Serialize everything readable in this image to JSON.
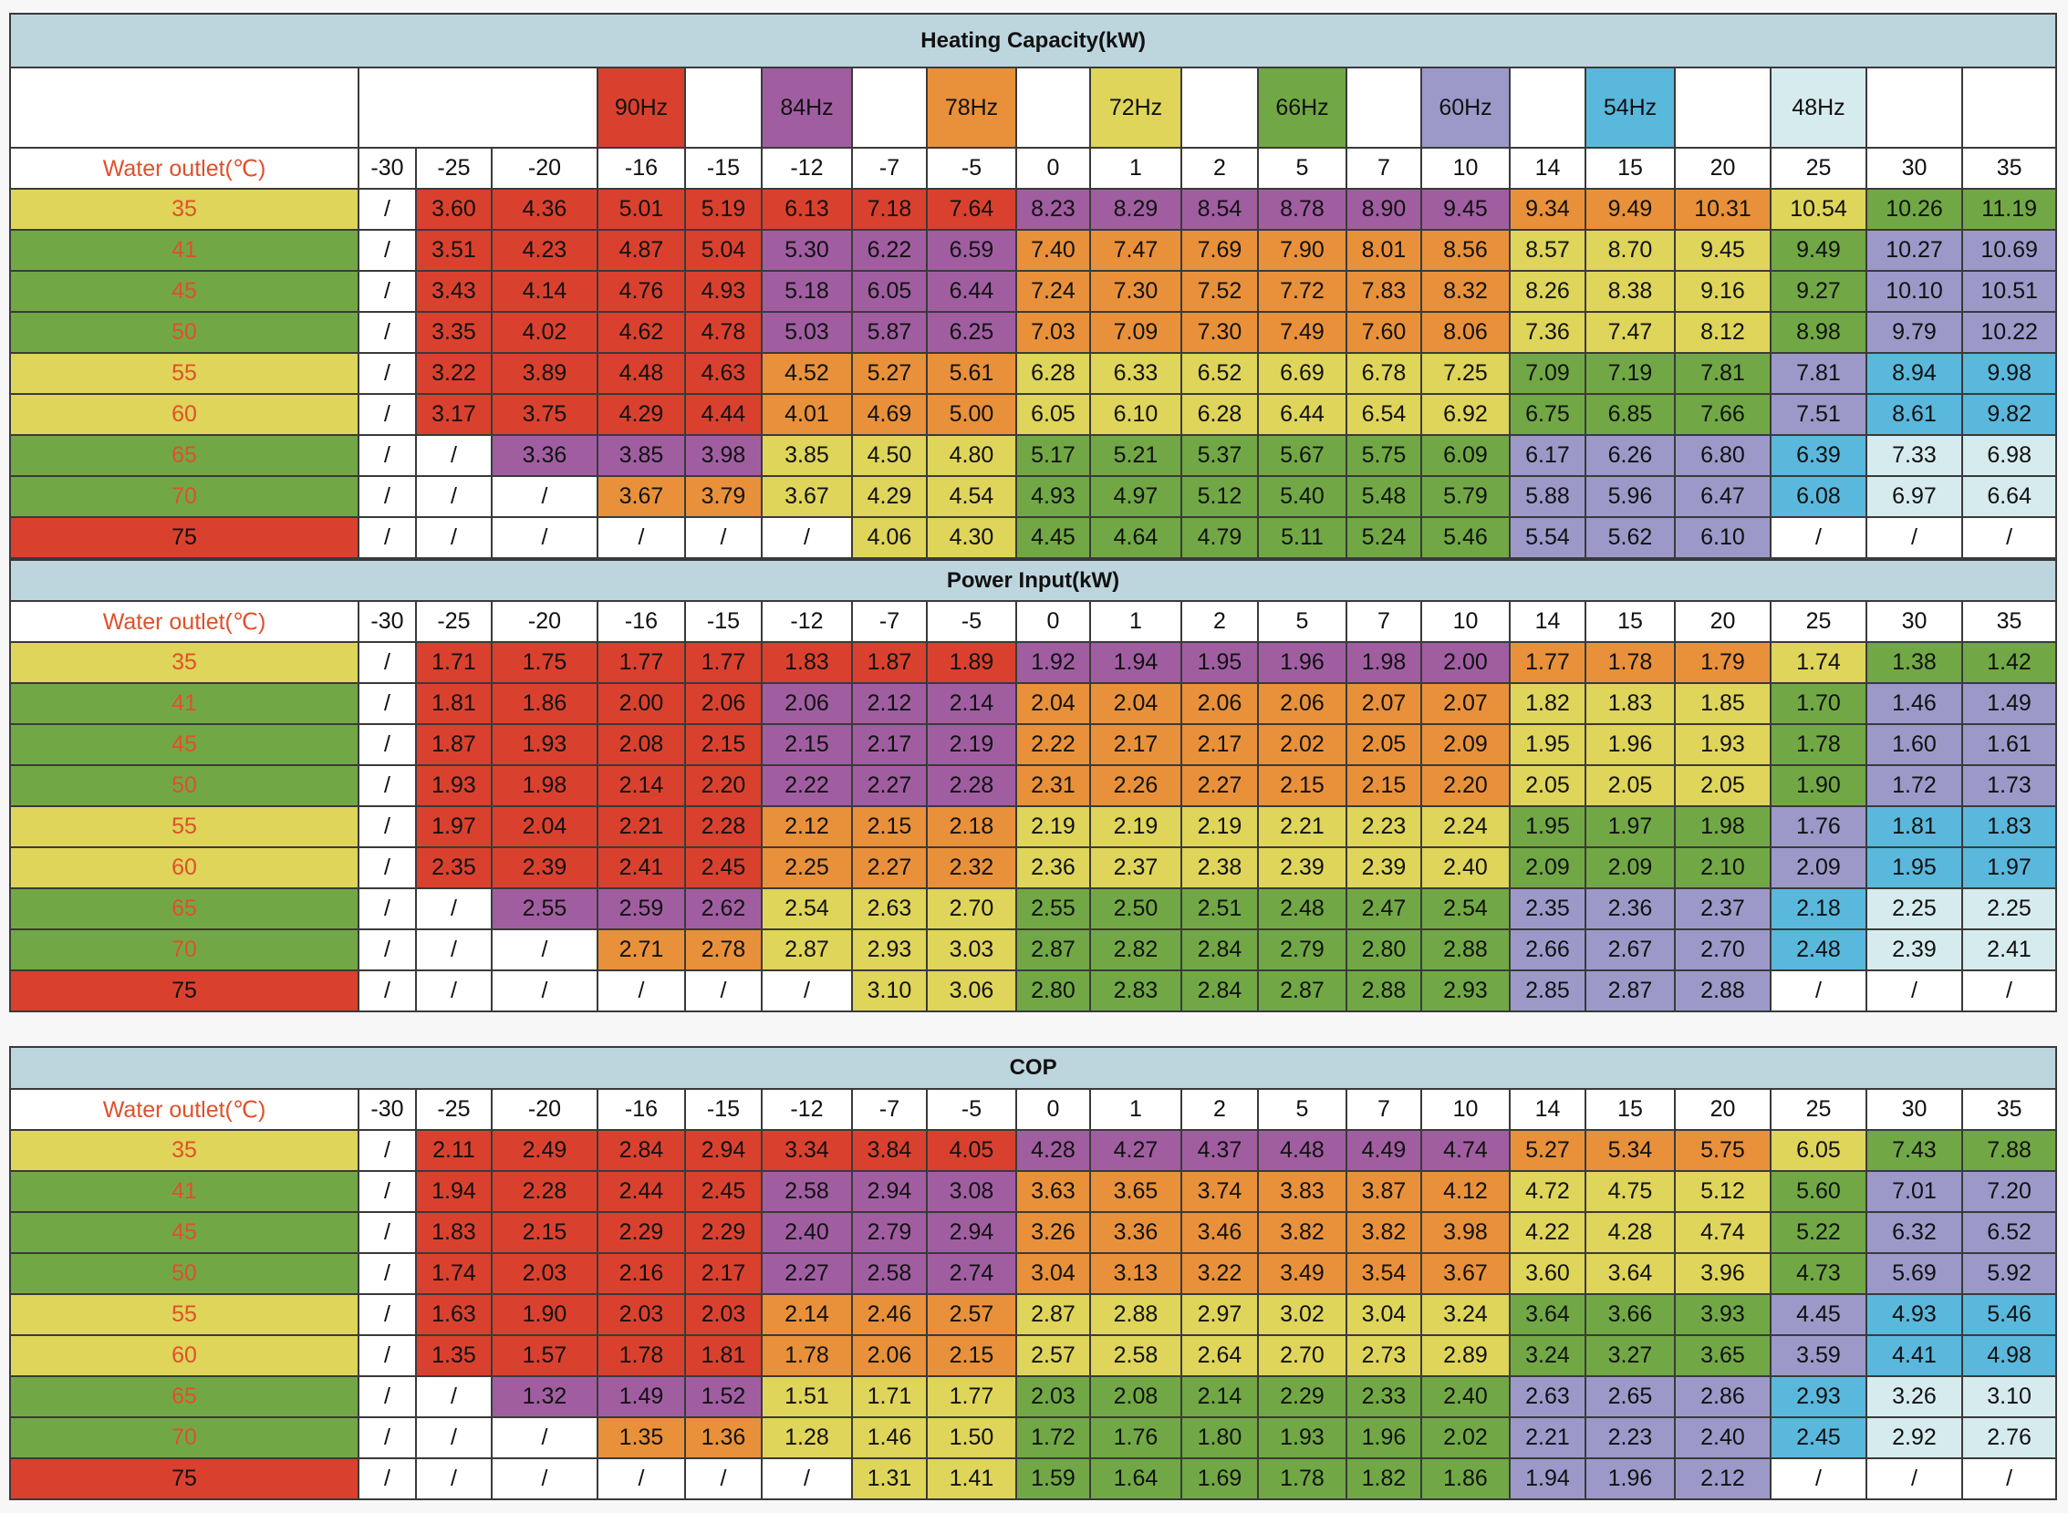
{
  "palette": {
    "R": "#d9412e",
    "P": "#a05ea1",
    "O": "#e8913a",
    "Y": "#ded55a",
    "G": "#71a845",
    "L": "#9c99c9",
    "B": "#5ab8dc",
    "C": "#d6ebee",
    "W": "#ffffff"
  },
  "outlet_header": "Water outlet(℃)",
  "ambient_temps": [
    "-30",
    "-25",
    "-20",
    "-16",
    "-15",
    "-12",
    "-7",
    "-5",
    "0",
    "1",
    "2",
    "5",
    "7",
    "10",
    "14",
    "15",
    "20",
    "25",
    "30",
    "35"
  ],
  "frequencies": [
    {
      "col": 3,
      "label": "90Hz",
      "color": "R"
    },
    {
      "col": 5,
      "label": "84Hz",
      "color": "P"
    },
    {
      "col": 7,
      "label": "78Hz",
      "color": "O"
    },
    {
      "col": 9,
      "label": "72Hz",
      "color": "Y"
    },
    {
      "col": 11,
      "label": "66Hz",
      "color": "G"
    },
    {
      "col": 13,
      "label": "60Hz",
      "color": "L"
    },
    {
      "col": 15,
      "label": "54Hz",
      "color": "B"
    },
    {
      "col": 17,
      "label": "48Hz",
      "color": "C"
    }
  ],
  "outlets": [
    {
      "label": "35",
      "color": "Y",
      "cells": "WRRRRRRRPPPPPPOOOYGG"
    },
    {
      "label": "41",
      "color": "G",
      "cells": "WRRRRPPPOOOOOOYYYGLL"
    },
    {
      "label": "45",
      "color": "G",
      "cells": "WRRRRPPPOOOOOOYYYGLL"
    },
    {
      "label": "50",
      "color": "G",
      "cells": "WRRRRPPPOOOOOOYYYGLL"
    },
    {
      "label": "55",
      "color": "Y",
      "cells": "WRRRROOOYYYYYYGGGLBB"
    },
    {
      "label": "60",
      "color": "Y",
      "cells": "WRRRROOOYYYYYYGGGLBB"
    },
    {
      "label": "65",
      "color": "G",
      "cells": "WWPPPYYYGGGGGGLLLBCC"
    },
    {
      "label": "70",
      "color": "G",
      "cells": "WWWOOYYYGGGGGGLLLBCC"
    },
    {
      "label": "75",
      "color": "R",
      "cells": "WWWWWWYYGGGGGGLLLWWW"
    }
  ],
  "sections": [
    {
      "title": "Heating Capacity(kW)",
      "rows": [
        [
          "/",
          "3.60",
          "4.36",
          "5.01",
          "5.19",
          "6.13",
          "7.18",
          "7.64",
          "8.23",
          "8.29",
          "8.54",
          "8.78",
          "8.90",
          "9.45",
          "9.34",
          "9.49",
          "10.31",
          "10.54",
          "10.26",
          "11.19"
        ],
        [
          "/",
          "3.51",
          "4.23",
          "4.87",
          "5.04",
          "5.30",
          "6.22",
          "6.59",
          "7.40",
          "7.47",
          "7.69",
          "7.90",
          "8.01",
          "8.56",
          "8.57",
          "8.70",
          "9.45",
          "9.49",
          "10.27",
          "10.69"
        ],
        [
          "/",
          "3.43",
          "4.14",
          "4.76",
          "4.93",
          "5.18",
          "6.05",
          "6.44",
          "7.24",
          "7.30",
          "7.52",
          "7.72",
          "7.83",
          "8.32",
          "8.26",
          "8.38",
          "9.16",
          "9.27",
          "10.10",
          "10.51"
        ],
        [
          "/",
          "3.35",
          "4.02",
          "4.62",
          "4.78",
          "5.03",
          "5.87",
          "6.25",
          "7.03",
          "7.09",
          "7.30",
          "7.49",
          "7.60",
          "8.06",
          "7.36",
          "7.47",
          "8.12",
          "8.98",
          "9.79",
          "10.22"
        ],
        [
          "/",
          "3.22",
          "3.89",
          "4.48",
          "4.63",
          "4.52",
          "5.27",
          "5.61",
          "6.28",
          "6.33",
          "6.52",
          "6.69",
          "6.78",
          "7.25",
          "7.09",
          "7.19",
          "7.81",
          "7.81",
          "8.94",
          "9.98"
        ],
        [
          "/",
          "3.17",
          "3.75",
          "4.29",
          "4.44",
          "4.01",
          "4.69",
          "5.00",
          "6.05",
          "6.10",
          "6.28",
          "6.44",
          "6.54",
          "6.92",
          "6.75",
          "6.85",
          "7.66",
          "7.51",
          "8.61",
          "9.82"
        ],
        [
          "/",
          "/",
          "3.36",
          "3.85",
          "3.98",
          "3.85",
          "4.50",
          "4.80",
          "5.17",
          "5.21",
          "5.37",
          "5.67",
          "5.75",
          "6.09",
          "6.17",
          "6.26",
          "6.80",
          "6.39",
          "7.33",
          "6.98"
        ],
        [
          "/",
          "/",
          "/",
          "3.67",
          "3.79",
          "3.67",
          "4.29",
          "4.54",
          "4.93",
          "4.97",
          "5.12",
          "5.40",
          "5.48",
          "5.79",
          "5.88",
          "5.96",
          "6.47",
          "6.08",
          "6.97",
          "6.64"
        ],
        [
          "/",
          "/",
          "/",
          "/",
          "/",
          "/",
          "4.06",
          "4.30",
          "4.45",
          "4.64",
          "4.79",
          "5.11",
          "5.24",
          "5.46",
          "5.54",
          "5.62",
          "6.10",
          "/",
          "/",
          "/"
        ]
      ]
    },
    {
      "title": "Power Input(kW)",
      "rows": [
        [
          "/",
          "1.71",
          "1.75",
          "1.77",
          "1.77",
          "1.83",
          "1.87",
          "1.89",
          "1.92",
          "1.94",
          "1.95",
          "1.96",
          "1.98",
          "2.00",
          "1.77",
          "1.78",
          "1.79",
          "1.74",
          "1.38",
          "1.42"
        ],
        [
          "/",
          "1.81",
          "1.86",
          "2.00",
          "2.06",
          "2.06",
          "2.12",
          "2.14",
          "2.04",
          "2.04",
          "2.06",
          "2.06",
          "2.07",
          "2.07",
          "1.82",
          "1.83",
          "1.85",
          "1.70",
          "1.46",
          "1.49"
        ],
        [
          "/",
          "1.87",
          "1.93",
          "2.08",
          "2.15",
          "2.15",
          "2.17",
          "2.19",
          "2.22",
          "2.17",
          "2.17",
          "2.02",
          "2.05",
          "2.09",
          "1.95",
          "1.96",
          "1.93",
          "1.78",
          "1.60",
          "1.61"
        ],
        [
          "/",
          "1.93",
          "1.98",
          "2.14",
          "2.20",
          "2.22",
          "2.27",
          "2.28",
          "2.31",
          "2.26",
          "2.27",
          "2.15",
          "2.15",
          "2.20",
          "2.05",
          "2.05",
          "2.05",
          "1.90",
          "1.72",
          "1.73"
        ],
        [
          "/",
          "1.97",
          "2.04",
          "2.21",
          "2.28",
          "2.12",
          "2.15",
          "2.18",
          "2.19",
          "2.19",
          "2.19",
          "2.21",
          "2.23",
          "2.24",
          "1.95",
          "1.97",
          "1.98",
          "1.76",
          "1.81",
          "1.83"
        ],
        [
          "/",
          "2.35",
          "2.39",
          "2.41",
          "2.45",
          "2.25",
          "2.27",
          "2.32",
          "2.36",
          "2.37",
          "2.38",
          "2.39",
          "2.39",
          "2.40",
          "2.09",
          "2.09",
          "2.10",
          "2.09",
          "1.95",
          "1.97"
        ],
        [
          "/",
          "/",
          "2.55",
          "2.59",
          "2.62",
          "2.54",
          "2.63",
          "2.70",
          "2.55",
          "2.50",
          "2.51",
          "2.48",
          "2.47",
          "2.54",
          "2.35",
          "2.36",
          "2.37",
          "2.18",
          "2.25",
          "2.25"
        ],
        [
          "/",
          "/",
          "/",
          "2.71",
          "2.78",
          "2.87",
          "2.93",
          "3.03",
          "2.87",
          "2.82",
          "2.84",
          "2.79",
          "2.80",
          "2.88",
          "2.66",
          "2.67",
          "2.70",
          "2.48",
          "2.39",
          "2.41"
        ],
        [
          "/",
          "/",
          "/",
          "/",
          "/",
          "/",
          "3.10",
          "3.06",
          "2.80",
          "2.83",
          "2.84",
          "2.87",
          "2.88",
          "2.93",
          "2.85",
          "2.87",
          "2.88",
          "/",
          "/",
          "/"
        ]
      ]
    },
    {
      "title": "COP",
      "rows": [
        [
          "/",
          "2.11",
          "2.49",
          "2.84",
          "2.94",
          "3.34",
          "3.84",
          "4.05",
          "4.28",
          "4.27",
          "4.37",
          "4.48",
          "4.49",
          "4.74",
          "5.27",
          "5.34",
          "5.75",
          "6.05",
          "7.43",
          "7.88"
        ],
        [
          "/",
          "1.94",
          "2.28",
          "2.44",
          "2.45",
          "2.58",
          "2.94",
          "3.08",
          "3.63",
          "3.65",
          "3.74",
          "3.83",
          "3.87",
          "4.12",
          "4.72",
          "4.75",
          "5.12",
          "5.60",
          "7.01",
          "7.20"
        ],
        [
          "/",
          "1.83",
          "2.15",
          "2.29",
          "2.29",
          "2.40",
          "2.79",
          "2.94",
          "3.26",
          "3.36",
          "3.46",
          "3.82",
          "3.82",
          "3.98",
          "4.22",
          "4.28",
          "4.74",
          "5.22",
          "6.32",
          "6.52"
        ],
        [
          "/",
          "1.74",
          "2.03",
          "2.16",
          "2.17",
          "2.27",
          "2.58",
          "2.74",
          "3.04",
          "3.13",
          "3.22",
          "3.49",
          "3.54",
          "3.67",
          "3.60",
          "3.64",
          "3.96",
          "4.73",
          "5.69",
          "5.92"
        ],
        [
          "/",
          "1.63",
          "1.90",
          "2.03",
          "2.03",
          "2.14",
          "2.46",
          "2.57",
          "2.87",
          "2.88",
          "2.97",
          "3.02",
          "3.04",
          "3.24",
          "3.64",
          "3.66",
          "3.93",
          "4.45",
          "4.93",
          "5.46"
        ],
        [
          "/",
          "1.35",
          "1.57",
          "1.78",
          "1.81",
          "1.78",
          "2.06",
          "2.15",
          "2.57",
          "2.58",
          "2.64",
          "2.70",
          "2.73",
          "2.89",
          "3.24",
          "3.27",
          "3.65",
          "3.59",
          "4.41",
          "4.98"
        ],
        [
          "/",
          "/",
          "1.32",
          "1.49",
          "1.52",
          "1.51",
          "1.71",
          "1.77",
          "2.03",
          "2.08",
          "2.14",
          "2.29",
          "2.33",
          "2.40",
          "2.63",
          "2.65",
          "2.86",
          "2.93",
          "3.26",
          "3.10"
        ],
        [
          "/",
          "/",
          "/",
          "1.35",
          "1.36",
          "1.28",
          "1.46",
          "1.50",
          "1.72",
          "1.76",
          "1.80",
          "1.93",
          "1.96",
          "2.02",
          "2.21",
          "2.23",
          "2.40",
          "2.45",
          "2.92",
          "2.76"
        ],
        [
          "/",
          "/",
          "/",
          "/",
          "/",
          "/",
          "1.31",
          "1.41",
          "1.59",
          "1.64",
          "1.69",
          "1.78",
          "1.82",
          "1.86",
          "1.94",
          "1.96",
          "2.12",
          "/",
          "/",
          "/"
        ]
      ]
    }
  ]
}
